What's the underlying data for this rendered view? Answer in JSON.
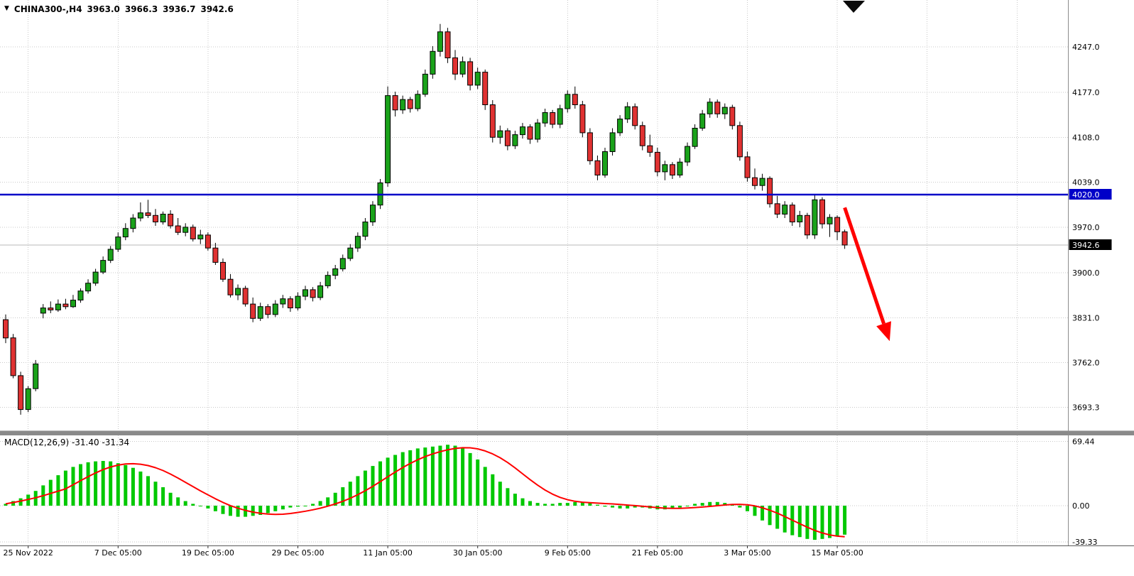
{
  "header": {
    "dropdown_icon": "▼",
    "symbol": "CHINA300-,H4",
    "open": "3963.0",
    "high": "3966.3",
    "low": "3936.7",
    "close": "3942.6"
  },
  "colors": {
    "bull": "#1aa21a",
    "bear": "#e03232",
    "candle_border": "#000000",
    "grid": "#c9c9c9",
    "blue_line": "#0000c8",
    "current_line": "#b9b9b9",
    "macd_hist": "#00c800",
    "macd_signal": "#ff0000",
    "arrow": "#ff0000",
    "badge_blue_bg": "#0000c8",
    "badge_black_bg": "#000000",
    "badge_text": "#ffffff",
    "separator": "#8a8a8a",
    "axis_text": "#000000"
  },
  "icons": {
    "symbol_dropdown": "black-down-triangle",
    "shift_marker": "black-corner-triangle"
  },
  "price_axis": {
    "blue_badge_label": "4020.0",
    "current_badge_label": "3942.6"
  },
  "time_axis": {
    "labels": [
      "25 Nov 2022",
      "7 Dec 05:00",
      "19 Dec 05:00",
      "29 Dec 05:00",
      "11 Jan 05:00",
      "30 Jan 05:00",
      "9 Feb 05:00",
      "21 Feb 05:00",
      "3 Mar 05:00",
      "15 Mar 05:00"
    ],
    "tick_indices": [
      3,
      15,
      27,
      39,
      51,
      63,
      75,
      87,
      99,
      111
    ],
    "extra_grid_indices": [
      123,
      135
    ]
  },
  "macd_panel": {
    "label": "MACD(12,26,9) -31.40 -31.34"
  },
  "chart_data": [
    {
      "type": "candlestick",
      "title": "CHINA300-,H4",
      "timeframe": "H4",
      "legend_position": "top-left",
      "grid": "dotted",
      "y_axis": {
        "tick_values": [
          4247.0,
          4177.0,
          4108.0,
          4039.0,
          3970.0,
          3900.0,
          3831.0,
          3762.0,
          3693.3
        ],
        "range": [
          3660,
          4320
        ]
      },
      "levels": {
        "horizontal_line": 4020.0,
        "last_price": 3942.6
      },
      "last_bar_ohlc": [
        3963.0,
        3966.3,
        3936.7,
        3942.6
      ],
      "ohlc": [
        [
          3828,
          3836,
          3792,
          3800
        ],
        [
          3800,
          3806,
          3738,
          3742
        ],
        [
          3742,
          3748,
          3682,
          3690
        ],
        [
          3690,
          3726,
          3686,
          3722
        ],
        [
          3722,
          3766,
          3718,
          3760
        ],
        [
          3838,
          3852,
          3830,
          3846
        ],
        [
          3846,
          3856,
          3838,
          3843
        ],
        [
          3843,
          3859,
          3840,
          3852
        ],
        [
          3852,
          3860,
          3844,
          3848
        ],
        [
          3848,
          3866,
          3846,
          3858
        ],
        [
          3858,
          3876,
          3854,
          3872
        ],
        [
          3872,
          3890,
          3868,
          3884
        ],
        [
          3884,
          3906,
          3880,
          3901
        ],
        [
          3901,
          3925,
          3898,
          3919
        ],
        [
          3919,
          3941,
          3915,
          3936
        ],
        [
          3936,
          3962,
          3932,
          3955
        ],
        [
          3955,
          3976,
          3950,
          3968
        ],
        [
          3968,
          3990,
          3962,
          3984
        ],
        [
          3984,
          4008,
          3979,
          3992
        ],
        [
          3992,
          4012,
          3984,
          3988
        ],
        [
          3988,
          3998,
          3972,
          3978
        ],
        [
          3978,
          3994,
          3974,
          3990
        ],
        [
          3990,
          3996,
          3968,
          3972
        ],
        [
          3972,
          3984,
          3958,
          3962
        ],
        [
          3962,
          3976,
          3956,
          3970
        ],
        [
          3970,
          3974,
          3948,
          3952
        ],
        [
          3952,
          3966,
          3944,
          3958
        ],
        [
          3958,
          3962,
          3934,
          3938
        ],
        [
          3938,
          3946,
          3912,
          3916
        ],
        [
          3916,
          3922,
          3886,
          3890
        ],
        [
          3890,
          3898,
          3862,
          3866
        ],
        [
          3866,
          3882,
          3858,
          3876
        ],
        [
          3876,
          3880,
          3848,
          3852
        ],
        [
          3852,
          3862,
          3824,
          3830
        ],
        [
          3830,
          3854,
          3826,
          3848
        ],
        [
          3848,
          3852,
          3830,
          3836
        ],
        [
          3836,
          3858,
          3832,
          3852
        ],
        [
          3852,
          3866,
          3846,
          3860
        ],
        [
          3860,
          3864,
          3840,
          3846
        ],
        [
          3846,
          3870,
          3842,
          3864
        ],
        [
          3864,
          3880,
          3858,
          3874
        ],
        [
          3874,
          3878,
          3856,
          3862
        ],
        [
          3862,
          3886,
          3858,
          3880
        ],
        [
          3880,
          3902,
          3876,
          3896
        ],
        [
          3896,
          3912,
          3890,
          3906
        ],
        [
          3906,
          3928,
          3902,
          3922
        ],
        [
          3922,
          3944,
          3918,
          3938
        ],
        [
          3938,
          3962,
          3932,
          3956
        ],
        [
          3956,
          3984,
          3950,
          3978
        ],
        [
          3978,
          4010,
          3972,
          4004
        ],
        [
          4004,
          4044,
          3998,
          4038
        ],
        [
          4038,
          4186,
          4032,
          4172
        ],
        [
          4172,
          4178,
          4140,
          4150
        ],
        [
          4150,
          4172,
          4144,
          4166
        ],
        [
          4166,
          4170,
          4146,
          4152
        ],
        [
          4152,
          4180,
          4148,
          4174
        ],
        [
          4174,
          4212,
          4170,
          4205
        ],
        [
          4205,
          4248,
          4198,
          4240
        ],
        [
          4240,
          4282,
          4232,
          4270
        ],
        [
          4270,
          4276,
          4222,
          4230
        ],
        [
          4230,
          4242,
          4196,
          4205
        ],
        [
          4205,
          4232,
          4200,
          4224
        ],
        [
          4224,
          4230,
          4180,
          4188
        ],
        [
          4188,
          4215,
          4182,
          4208
        ],
        [
          4208,
          4212,
          4150,
          4158
        ],
        [
          4158,
          4165,
          4100,
          4108
        ],
        [
          4108,
          4126,
          4098,
          4118
        ],
        [
          4118,
          4122,
          4088,
          4095
        ],
        [
          4095,
          4118,
          4090,
          4112
        ],
        [
          4112,
          4130,
          4106,
          4124
        ],
        [
          4124,
          4128,
          4098,
          4105
        ],
        [
          4105,
          4136,
          4100,
          4130
        ],
        [
          4130,
          4152,
          4124,
          4146
        ],
        [
          4146,
          4150,
          4122,
          4128
        ],
        [
          4128,
          4158,
          4122,
          4152
        ],
        [
          4152,
          4180,
          4146,
          4174
        ],
        [
          4174,
          4186,
          4152,
          4158
        ],
        [
          4158,
          4164,
          4108,
          4115
        ],
        [
          4115,
          4122,
          4066,
          4072
        ],
        [
          4072,
          4080,
          4042,
          4050
        ],
        [
          4050,
          4092,
          4046,
          4086
        ],
        [
          4086,
          4122,
          4080,
          4115
        ],
        [
          4115,
          4142,
          4110,
          4136
        ],
        [
          4136,
          4162,
          4130,
          4155
        ],
        [
          4155,
          4160,
          4120,
          4126
        ],
        [
          4126,
          4132,
          4088,
          4095
        ],
        [
          4095,
          4112,
          4078,
          4085
        ],
        [
          4085,
          4092,
          4048,
          4055
        ],
        [
          4055,
          4072,
          4042,
          4066
        ],
        [
          4066,
          4070,
          4044,
          4050
        ],
        [
          4050,
          4076,
          4046,
          4070
        ],
        [
          4070,
          4100,
          4064,
          4094
        ],
        [
          4094,
          4128,
          4090,
          4122
        ],
        [
          4122,
          4150,
          4118,
          4144
        ],
        [
          4144,
          4168,
          4138,
          4162
        ],
        [
          4162,
          4166,
          4138,
          4144
        ],
        [
          4144,
          4160,
          4136,
          4154
        ],
        [
          4154,
          4158,
          4120,
          4126
        ],
        [
          4126,
          4132,
          4072,
          4078
        ],
        [
          4078,
          4086,
          4040,
          4046
        ],
        [
          4046,
          4060,
          4028,
          4034
        ],
        [
          4034,
          4052,
          4026,
          4045
        ],
        [
          4045,
          4048,
          4000,
          4006
        ],
        [
          4006,
          4018,
          3984,
          3990
        ],
        [
          3990,
          4010,
          3984,
          4004
        ],
        [
          4004,
          4008,
          3972,
          3978
        ],
        [
          3978,
          3995,
          3970,
          3988
        ],
        [
          3988,
          3992,
          3952,
          3958
        ],
        [
          3958,
          4020,
          3952,
          4012
        ],
        [
          4012,
          4016,
          3968,
          3975
        ],
        [
          3975,
          3990,
          3955,
          3985
        ],
        [
          3985,
          3988,
          3950,
          3963
        ],
        [
          3963,
          3966.3,
          3936.7,
          3942.6
        ]
      ]
    },
    {
      "type": "bar",
      "title": "MACD(12,26,9)",
      "current_macd": -31.4,
      "current_signal": -31.34,
      "signal_period": 9,
      "y_axis": {
        "tick_values": [
          69.44,
          0.0,
          -39.33
        ],
        "range": [
          -41,
          72
        ]
      },
      "values": [
        2,
        5,
        8,
        12,
        16,
        22,
        28,
        33,
        38,
        42,
        45,
        47,
        48,
        48.5,
        48,
        46,
        44,
        41,
        37,
        32,
        26,
        20,
        14,
        9,
        5,
        2,
        0,
        -3,
        -6,
        -9,
        -11,
        -12,
        -12,
        -11,
        -10,
        -8,
        -6,
        -4,
        -2,
        -1,
        0,
        2,
        5,
        9,
        14,
        20,
        26,
        32,
        38,
        43,
        48,
        52,
        55,
        58,
        60,
        62,
        63,
        64,
        65,
        66,
        65,
        62,
        57,
        50,
        42,
        34,
        26,
        19,
        13,
        8,
        5,
        3,
        2,
        2,
        3,
        3,
        4,
        4,
        3,
        1,
        -1,
        -2,
        -3,
        -3,
        -2,
        -2,
        -3,
        -4,
        -4,
        -3,
        -2,
        0,
        2,
        3,
        4,
        4,
        3,
        1,
        -2,
        -6,
        -11,
        -16,
        -21,
        -25,
        -29,
        -32,
        -34,
        -36,
        -37,
        -36,
        -35,
        -33,
        -31.4
      ]
    }
  ],
  "annotations": {
    "arrow": {
      "from": {
        "index": 112,
        "price": 4000
      },
      "to": {
        "index": 118,
        "price": 3795
      }
    }
  }
}
